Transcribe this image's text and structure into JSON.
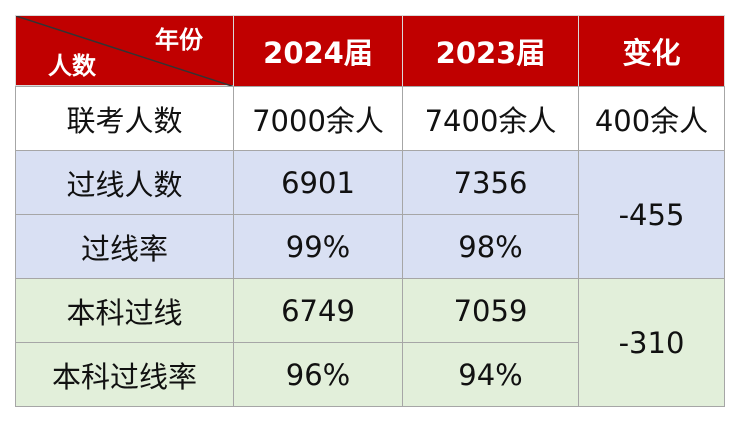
{
  "table": {
    "header": {
      "corner_top": "年份",
      "corner_bottom": "人数",
      "columns": [
        "2024届",
        "2023届",
        "变化"
      ]
    },
    "rows": [
      [
        "联考人数",
        "7000余人",
        "7400余人",
        "400余人"
      ],
      [
        "过线人数",
        "6901",
        "7356",
        "-455"
      ],
      [
        "过线率",
        "99%",
        "98%"
      ],
      [
        "本科过线",
        "6749",
        "7059",
        "-310"
      ],
      [
        "本科过线率",
        "96%",
        "94%"
      ]
    ]
  }
}
